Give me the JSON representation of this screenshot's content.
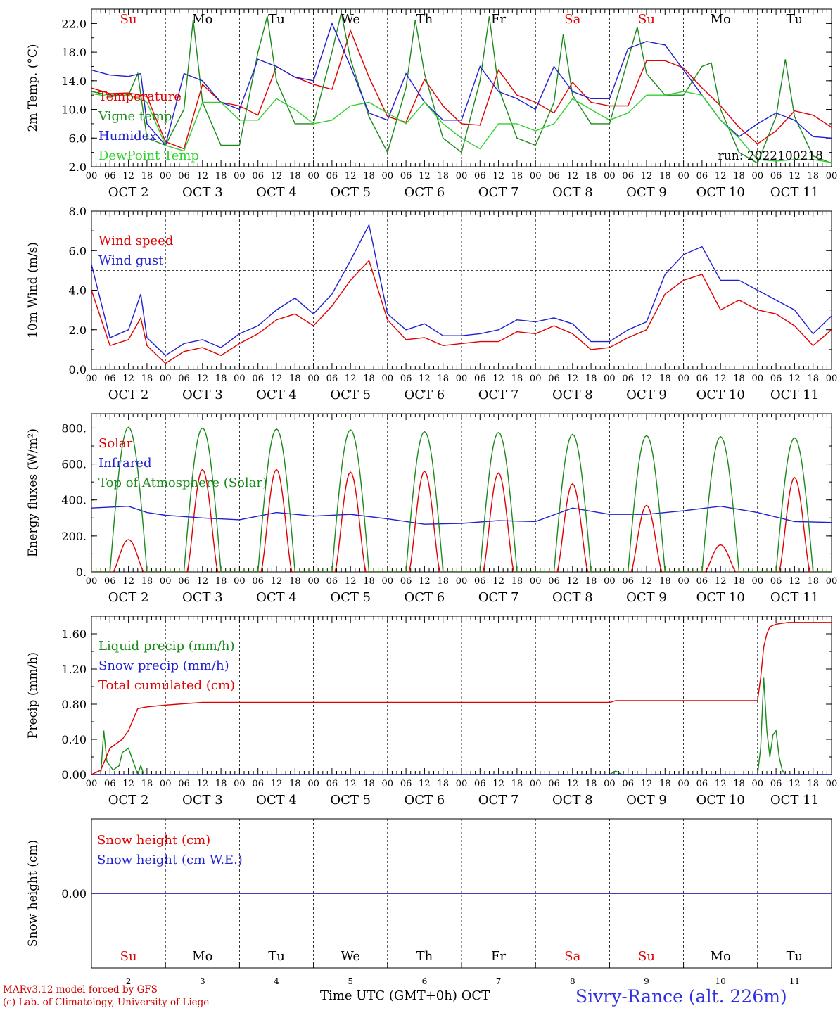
{
  "days": {
    "top": [
      "Su",
      "Mo",
      "Tu",
      "We",
      "Th",
      "Fr",
      "Sa",
      "Su",
      "Mo",
      "Tu"
    ],
    "top_colors": [
      "#e00000",
      "#000000",
      "#000000",
      "#000000",
      "#000000",
      "#000000",
      "#e00000",
      "#e00000",
      "#000000",
      "#000000"
    ],
    "bottom": [
      "Su",
      "Mo",
      "Tu",
      "We",
      "Th",
      "Fr",
      "Sa",
      "Su",
      "Mo",
      "Tu"
    ],
    "bottom_colors": [
      "#e00000",
      "#000000",
      "#000000",
      "#000000",
      "#000000",
      "#000000",
      "#e00000",
      "#e00000",
      "#000000",
      "#000000"
    ],
    "dates": [
      "OCT 2",
      "OCT 3",
      "OCT 4",
      "OCT 5",
      "OCT 6",
      "OCT 7",
      "OCT 8",
      "OCT 9",
      "OCT 10",
      "OCT 11"
    ],
    "day_numbers": [
      "2",
      "3",
      "4",
      "5",
      "6",
      "7",
      "8",
      "9",
      "10",
      "11"
    ],
    "hour_labels": [
      "00",
      "06",
      "12",
      "18"
    ]
  },
  "chart_data": [
    {
      "type": "line",
      "ylabel": "2m Temp. (°C)",
      "ylim": [
        2.0,
        24.0
      ],
      "yticks": [
        "2.0",
        "6.0",
        "10.0",
        "14.0",
        "18.0",
        "22.0"
      ],
      "annotation": "run: 2022100218",
      "x_unit": "hours since Oct 2 00 UTC",
      "series": [
        {
          "name": "Temperature",
          "color": "#e00000",
          "x": [
            0,
            6,
            12,
            18,
            24,
            30,
            36,
            42,
            48,
            54,
            60,
            66,
            72,
            78,
            84,
            90,
            96,
            102,
            108,
            114,
            120,
            126,
            132,
            138,
            144,
            150,
            156,
            162,
            168,
            174,
            180,
            186,
            192,
            198,
            204,
            210,
            216,
            222,
            228,
            234,
            240
          ],
          "y": [
            13,
            12.2,
            12.3,
            11.8,
            5.5,
            4.5,
            13.5,
            11,
            10.5,
            9.2,
            16,
            14.5,
            13.5,
            12.8,
            21,
            14.5,
            9,
            8.2,
            14.2,
            10.5,
            8,
            7.8,
            15.5,
            12,
            11,
            9.5,
            13.8,
            11,
            10.5,
            10.5,
            16.8,
            16.8,
            15.8,
            13,
            10.5,
            7.5,
            5.2,
            7,
            9.8,
            9.2,
            7.5
          ]
        },
        {
          "name": "Vigne temp",
          "color": "#1a8a1a",
          "x": [
            0,
            6,
            12,
            15,
            18,
            24,
            30,
            33,
            36,
            42,
            48,
            54,
            57,
            60,
            66,
            72,
            78,
            81,
            84,
            90,
            96,
            102,
            105,
            108,
            114,
            120,
            126,
            129,
            132,
            138,
            144,
            150,
            153,
            156,
            162,
            168,
            174,
            177,
            180,
            186,
            192,
            198,
            201,
            204,
            210,
            216,
            222,
            225,
            228,
            234,
            240
          ],
          "y": [
            12.5,
            12,
            12,
            15,
            6,
            5,
            10,
            22.5,
            11,
            5,
            5,
            18,
            23,
            14,
            8,
            8,
            18,
            23.5,
            17,
            9,
            4,
            13,
            22.5,
            15,
            6,
            4,
            14,
            23,
            13,
            6,
            5,
            11,
            20.5,
            12,
            8,
            8,
            17,
            21.5,
            15,
            12,
            12,
            16,
            16.5,
            10,
            4,
            2.5,
            9,
            17,
            9,
            3.5,
            2.5
          ]
        },
        {
          "name": "Humidex",
          "color": "#2020d0",
          "x": [
            0,
            6,
            12,
            16,
            18,
            24,
            30,
            36,
            42,
            48,
            54,
            60,
            66,
            72,
            78,
            84,
            90,
            96,
            102,
            108,
            114,
            120,
            126,
            132,
            138,
            144,
            150,
            156,
            162,
            168,
            174,
            180,
            186,
            192,
            198,
            204,
            210,
            216,
            222,
            228,
            234,
            240
          ],
          "y": [
            15.5,
            14.8,
            14.6,
            15,
            8,
            5,
            15,
            14,
            11,
            10,
            17,
            16,
            14.5,
            14,
            22,
            16,
            9.5,
            8.5,
            15,
            11,
            8.5,
            8.5,
            16,
            12.5,
            11.5,
            10,
            16,
            12.5,
            11.5,
            11.5,
            18.5,
            19.5,
            19,
            15.5,
            12,
            8.5,
            6.2,
            8,
            9.5,
            8.5,
            6.2,
            6
          ]
        },
        {
          "name": "DewPoint Temp",
          "color": "#30d030",
          "x": [
            0,
            6,
            12,
            18,
            24,
            30,
            36,
            42,
            48,
            54,
            60,
            66,
            72,
            78,
            84,
            90,
            96,
            102,
            108,
            114,
            120,
            126,
            132,
            138,
            144,
            150,
            156,
            162,
            168,
            174,
            180,
            186,
            192,
            198,
            204,
            210,
            216,
            222,
            228,
            234,
            240
          ],
          "y": [
            12.2,
            11.8,
            12,
            11,
            5,
            4.2,
            11,
            11,
            8.5,
            8.5,
            11.5,
            10,
            8,
            8.5,
            10.5,
            11,
            9.5,
            8,
            11,
            8,
            6,
            4.5,
            8,
            8,
            7,
            8,
            11.5,
            10,
            8.5,
            9.5,
            12,
            12,
            12.5,
            12,
            8.5,
            6,
            3,
            2.8,
            3,
            3,
            2.6
          ]
        }
      ]
    },
    {
      "type": "line",
      "ylabel": "10m Wind (m/s)",
      "ylim": [
        0.0,
        8.0
      ],
      "yticks": [
        "0.0",
        "2.0",
        "4.0",
        "6.0",
        "8.0"
      ],
      "reference_line": 5.0,
      "series": [
        {
          "name": "Wind speed",
          "color": "#e00000",
          "x": [
            0,
            6,
            12,
            16,
            18,
            24,
            30,
            36,
            42,
            48,
            54,
            60,
            66,
            72,
            78,
            84,
            90,
            96,
            102,
            108,
            114,
            120,
            126,
            132,
            138,
            144,
            150,
            156,
            162,
            168,
            174,
            180,
            186,
            192,
            198,
            204,
            210,
            216,
            222,
            228,
            234,
            240
          ],
          "y": [
            4,
            1.2,
            1.5,
            2.6,
            1.2,
            0.3,
            0.9,
            1.1,
            0.7,
            1.3,
            1.8,
            2.5,
            2.8,
            2.2,
            3.2,
            4.5,
            5.5,
            2.5,
            1.5,
            1.6,
            1.2,
            1.3,
            1.4,
            1.4,
            1.9,
            1.8,
            2.2,
            1.8,
            1.0,
            1.1,
            1.6,
            2.0,
            3.8,
            4.5,
            4.8,
            3.0,
            3.5,
            3.0,
            2.8,
            2.2,
            1.2,
            2.0
          ]
        },
        {
          "name": "Wind gust",
          "color": "#2020d0",
          "x": [
            0,
            6,
            12,
            16,
            18,
            24,
            30,
            36,
            42,
            48,
            54,
            60,
            66,
            72,
            78,
            84,
            90,
            96,
            102,
            108,
            114,
            120,
            126,
            132,
            138,
            144,
            150,
            156,
            162,
            168,
            174,
            180,
            186,
            192,
            198,
            204,
            210,
            216,
            222,
            228,
            234,
            240
          ],
          "y": [
            5.3,
            1.6,
            2.0,
            3.8,
            1.6,
            0.7,
            1.3,
            1.5,
            1.1,
            1.8,
            2.2,
            3.0,
            3.6,
            2.8,
            3.8,
            5.5,
            7.3,
            2.8,
            2.0,
            2.3,
            1.7,
            1.7,
            1.8,
            2.0,
            2.5,
            2.4,
            2.6,
            2.3,
            1.4,
            1.4,
            2.0,
            2.4,
            4.8,
            5.8,
            6.2,
            4.5,
            4.5,
            4.0,
            3.5,
            3.0,
            1.8,
            2.7
          ]
        }
      ]
    },
    {
      "type": "line",
      "ylabel": "Energy fluxes (W/m²)",
      "ylim": [
        0,
        880
      ],
      "yticks": [
        "0.",
        "200.",
        "400.",
        "600.",
        "800."
      ],
      "series": [
        {
          "name": "Solar",
          "color": "#e00000",
          "peaks": [
            180,
            570,
            570,
            555,
            560,
            550,
            490,
            370,
            150,
            525
          ]
        },
        {
          "name": "Infrared",
          "color": "#2020d0",
          "x": [
            0,
            12,
            18,
            24,
            36,
            48,
            60,
            72,
            84,
            96,
            108,
            120,
            132,
            144,
            156,
            168,
            180,
            192,
            204,
            216,
            228,
            240
          ],
          "y": [
            355,
            365,
            330,
            315,
            300,
            290,
            330,
            310,
            320,
            295,
            265,
            270,
            285,
            280,
            355,
            320,
            320,
            340,
            365,
            330,
            280,
            275
          ]
        },
        {
          "name": "Top of Atmosphere (Solar)",
          "color": "#1a8a1a",
          "peaks": [
            805,
            800,
            795,
            790,
            780,
            775,
            765,
            758,
            752,
            745
          ]
        }
      ]
    },
    {
      "type": "line",
      "ylabel": "Precip (mm/h)",
      "ylim": [
        0.0,
        1.8
      ],
      "yticks": [
        "0.00",
        "0.40",
        "0.80",
        "1.20",
        "1.60"
      ],
      "series": [
        {
          "name": "Liquid precip (mm/h)",
          "color": "#1a8a1a",
          "x": [
            0,
            3,
            4,
            5,
            7,
            9,
            10,
            12,
            14,
            15,
            16,
            17,
            18,
            24,
            120,
            168,
            170,
            172,
            216,
            217,
            218,
            219,
            220,
            221,
            222,
            223,
            224,
            225,
            226,
            228,
            240
          ],
          "y": [
            0,
            0,
            0.5,
            0.15,
            0.05,
            0.1,
            0.25,
            0.3,
            0.1,
            0,
            0.1,
            0,
            0,
            0,
            0,
            0,
            0.04,
            0,
            0,
            0.3,
            1.1,
            0.5,
            0.2,
            0.45,
            0.5,
            0.2,
            0.05,
            0,
            0,
            0,
            0
          ]
        },
        {
          "name": "Snow precip (mm/h)",
          "color": "#2020d0",
          "x": [
            0,
            240
          ],
          "y": [
            0,
            0
          ]
        },
        {
          "name": "Total cumulated (cm)",
          "color": "#e00000",
          "x": [
            0,
            3,
            6,
            10,
            12,
            15,
            18,
            24,
            36,
            60,
            120,
            168,
            170,
            216,
            217,
            218,
            219,
            220,
            222,
            226,
            240
          ],
          "y": [
            0,
            0.05,
            0.3,
            0.4,
            0.5,
            0.75,
            0.77,
            0.79,
            0.82,
            0.82,
            0.82,
            0.82,
            0.84,
            0.84,
            1.1,
            1.45,
            1.6,
            1.68,
            1.71,
            1.73,
            1.73
          ]
        }
      ]
    },
    {
      "type": "line",
      "ylabel": "Snow height (cm)",
      "ylim": [
        -1.0,
        1.0
      ],
      "yticks": [
        "0.00"
      ],
      "series": [
        {
          "name": "Snow height (cm)",
          "color": "#e00000",
          "x": [
            0,
            240
          ],
          "y": [
            0,
            0
          ]
        },
        {
          "name": "Snow height (cm W.E.)",
          "color": "#2020d0",
          "x": [
            0,
            240
          ],
          "y": [
            0,
            0
          ]
        }
      ]
    }
  ],
  "footer": {
    "model_line": "MARv3.12 model forced by GFS",
    "credit_line": "(c) Lab. of Climatology, University of Liege",
    "xlabel": "Time UTC (GMT+0h)",
    "month": "OCT",
    "station": "Sivry-Rance (alt. 226m)"
  }
}
